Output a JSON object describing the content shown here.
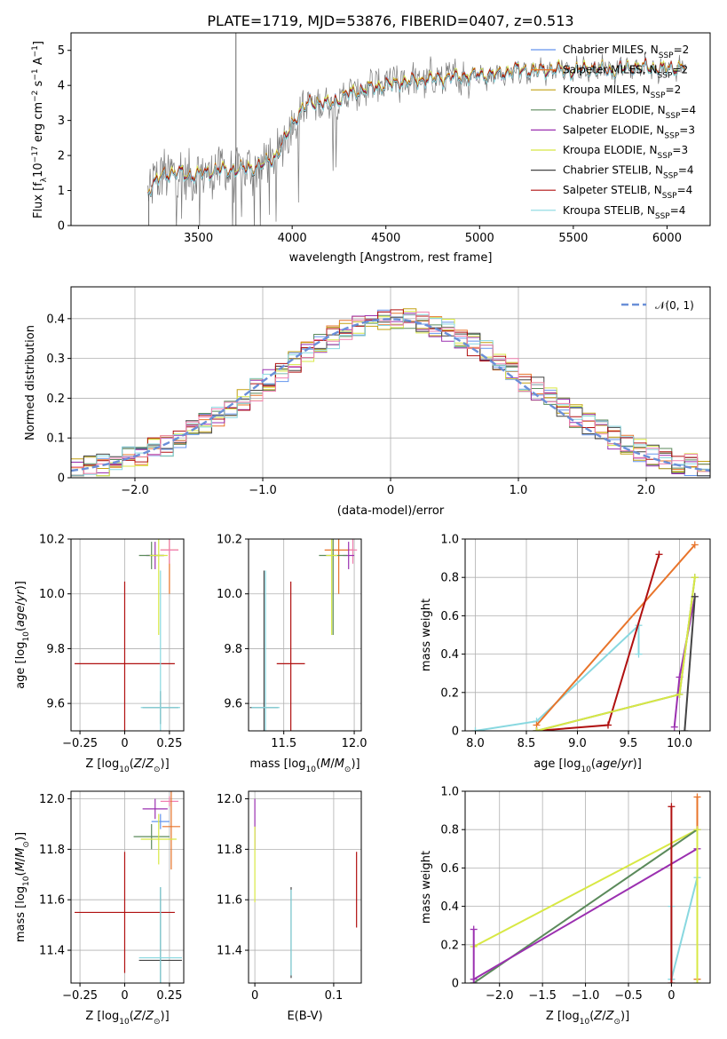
{
  "figure": {
    "title": "PLATE=1719, MJD=53876, FIBERID=0407, z=0.513"
  },
  "colors": {
    "chabrier_miles": "#6495ed",
    "salpeter_miles": "#e8742a",
    "kroupa_miles": "#c2a012",
    "chabrier_elodie": "#5b8a5b",
    "salpeter_elodie": "#9b30b0",
    "kroupa_elodie": "#d8e844",
    "chabrier_stelib": "#444444",
    "salpeter_stelib": "#b01010",
    "kroupa_stelib": "#88d8e0",
    "data_gray": "#7a7a7a",
    "normal_curve": "#6a8fd8",
    "pink": "#f080b0"
  },
  "chart_data": [
    {
      "id": "spectrum",
      "type": "line",
      "title": "PLATE=1719, MJD=53876, FIBERID=0407, z=0.513",
      "xlabel": "wavelength [Angstrom, rest frame]",
      "ylabel": "Flux [f_λ 10^-17 erg cm^-2 s^-1 A^-1]",
      "xlim": [
        2820,
        6230
      ],
      "ylim": [
        0,
        5.5
      ],
      "xticks": [
        3500,
        4000,
        4500,
        5000,
        5500,
        6000
      ],
      "yticks": [
        0,
        1,
        2,
        3,
        4,
        5
      ],
      "grid": false,
      "legend_position": "top-right",
      "legend": [
        {
          "label": "Chabrier MILES, N_SSP=2",
          "base": "Chabrier MILES, N",
          "sub": "SSP",
          "suffix": "=2",
          "color": "#6495ed"
        },
        {
          "label": "Salpeter MILES, N_SSP=2",
          "base": "Salpeter MILES, N",
          "sub": "SSP",
          "suffix": "=2",
          "color": "#e8742a"
        },
        {
          "label": "Kroupa MILES, N_SSP=2",
          "base": "Kroupa MILES, N",
          "sub": "SSP",
          "suffix": "=2",
          "color": "#c2a012"
        },
        {
          "label": "Chabrier ELODIE, N_SSP=4",
          "base": "Chabrier ELODIE, N",
          "sub": "SSP",
          "suffix": "=4",
          "color": "#5b8a5b"
        },
        {
          "label": "Salpeter ELODIE, N_SSP=3",
          "base": "Salpeter ELODIE, N",
          "sub": "SSP",
          "suffix": "=3",
          "color": "#9b30b0"
        },
        {
          "label": "Kroupa ELODIE, N_SSP=3",
          "base": "Kroupa ELODIE, N",
          "sub": "SSP",
          "suffix": "=3",
          "color": "#d8e844"
        },
        {
          "label": "Chabrier STELIB, N_SSP=4",
          "base": "Chabrier STELIB, N",
          "sub": "SSP",
          "suffix": "=4",
          "color": "#444444"
        },
        {
          "label": "Salpeter STELIB, N_SSP=4",
          "base": "Salpeter STELIB, N",
          "sub": "SSP",
          "suffix": "=4",
          "color": "#b01010"
        },
        {
          "label": "Kroupa STELIB, N_SSP=4",
          "base": "Kroupa STELIB, N",
          "sub": "SSP",
          "suffix": "=4",
          "color": "#88d8e0"
        }
      ],
      "model_x": [
        3230,
        3250,
        3300,
        3350,
        3400,
        3450,
        3500,
        3550,
        3600,
        3650,
        3700,
        3750,
        3800,
        3850,
        3900,
        3950,
        4000,
        4050,
        4100,
        4150,
        4200,
        4300,
        4400,
        4500,
        4600,
        4700,
        4800,
        4900,
        5000,
        5100,
        5200,
        5300,
        5400,
        5500,
        5600,
        5700,
        5800,
        5900,
        6000,
        6100
      ],
      "model_y": [
        1.0,
        1.1,
        1.4,
        1.5,
        1.5,
        1.4,
        1.45,
        1.5,
        1.6,
        1.55,
        1.6,
        1.6,
        1.65,
        1.75,
        1.9,
        2.3,
        2.9,
        3.3,
        3.5,
        3.5,
        3.45,
        3.75,
        3.9,
        4.0,
        4.1,
        4.15,
        4.2,
        4.25,
        4.3,
        4.3,
        4.45,
        4.4,
        4.45,
        4.4,
        4.5,
        4.4,
        4.5,
        4.5,
        4.45,
        4.55
      ]
    },
    {
      "id": "residuals",
      "type": "step",
      "xlabel": "(data-model)/error",
      "ylabel": "Normed distribution",
      "xlim": [
        -2.5,
        2.5
      ],
      "ylim": [
        0,
        0.48
      ],
      "xticks": [
        -2,
        -1,
        0,
        1,
        2
      ],
      "yticks": [
        0.0,
        0.1,
        0.2,
        0.3,
        0.4
      ],
      "grid": true,
      "legend_position": "top-right",
      "legend": [
        {
          "label": "𝒩(0, 1)",
          "style": "dashed",
          "color": "#6a8fd8"
        }
      ],
      "bin_width": 0.1
    },
    {
      "id": "age_vs_Z",
      "type": "errorbar",
      "xlabel": "Z [log10(Z/Z⊙)]",
      "ylabel": "age [log10(age/yr)]",
      "xlim": [
        -0.3,
        0.33
      ],
      "ylim": [
        9.5,
        10.2
      ],
      "xticks": [
        -0.25,
        0.0,
        0.25
      ],
      "yticks": [
        9.6,
        9.8,
        10.0,
        10.2
      ],
      "grid": true,
      "points": [
        {
          "x": 0.25,
          "y": 10.16,
          "xe": 0.05,
          "ye": 0.16,
          "color": "#e8742a"
        },
        {
          "x": 0.25,
          "y": 10.16,
          "xe": 0.05,
          "ye": 0.05,
          "color": "#f080b0"
        },
        {
          "x": 0.17,
          "y": 10.14,
          "xe": 0.05,
          "ye": 0.05,
          "color": "#9b30b0"
        },
        {
          "x": 0.15,
          "y": 10.14,
          "xe": 0.07,
          "ye": 0.05,
          "color": "#5b8a5b"
        },
        {
          "x": 0.19,
          "y": 10.14,
          "xe": 0.05,
          "ye": 0.29,
          "color": "#d8e844"
        },
        {
          "x": 0.0,
          "y": 9.745,
          "xe": 0.28,
          "ye": 0.3,
          "color": "#b01010"
        },
        {
          "x": 0.2,
          "y": 9.585,
          "xe": 0.1,
          "ye": 0.06,
          "color": "#444444"
        },
        {
          "x": 0.2,
          "y": 9.585,
          "xe": 0.11,
          "ye": 0.5,
          "color": "#88d8e0"
        }
      ]
    },
    {
      "id": "age_vs_mass",
      "type": "errorbar",
      "xlabel": "mass [log10(M/M⊙)]",
      "ylabel": "",
      "xlim": [
        11.25,
        12.05
      ],
      "ylim": [
        9.5,
        10.2
      ],
      "xticks": [
        11.5,
        12.0
      ],
      "yticks": [
        9.6,
        9.8,
        10.0,
        10.2
      ],
      "grid": true,
      "points": [
        {
          "x": 11.89,
          "y": 10.16,
          "xe": 0.1,
          "ye": 0.16,
          "color": "#e8742a"
        },
        {
          "x": 11.99,
          "y": 10.16,
          "xe": 0.03,
          "ye": 0.05,
          "color": "#f080b0"
        },
        {
          "x": 11.96,
          "y": 10.14,
          "xe": 0.04,
          "ye": 0.05,
          "color": "#9b30b0"
        },
        {
          "x": 11.85,
          "y": 10.14,
          "xe": 0.1,
          "ye": 0.29,
          "color": "#5b8a5b"
        },
        {
          "x": 11.84,
          "y": 10.14,
          "xe": 0.04,
          "ye": 0.29,
          "color": "#d8e844"
        },
        {
          "x": 11.55,
          "y": 9.745,
          "xe": 0.1,
          "ye": 0.3,
          "color": "#b01010"
        },
        {
          "x": 11.36,
          "y": 9.585,
          "xe": 0.1,
          "ye": 0.5,
          "color": "#444444"
        },
        {
          "x": 11.37,
          "y": 9.585,
          "xe": 0.1,
          "ye": 0.5,
          "color": "#88d8e0"
        }
      ]
    },
    {
      "id": "mass_weight_vs_age",
      "type": "line",
      "xlabel": "age [log10(age/yr)]",
      "ylabel": "mass weight",
      "xlim": [
        7.9,
        10.3
      ],
      "ylim": [
        0,
        1.0
      ],
      "xticks": [
        8.0,
        8.5,
        9.0,
        9.5,
        10.0
      ],
      "yticks": [
        0.0,
        0.2,
        0.4,
        0.6,
        0.8,
        1.0
      ],
      "grid": true,
      "series": [
        {
          "color": "#88d8e0",
          "x": [
            8.0,
            8.6,
            9.6,
            9.6
          ],
          "y": [
            0.0,
            0.05,
            0.55,
            0.4
          ]
        },
        {
          "color": "#e8742a",
          "x": [
            8.6,
            10.15
          ],
          "y": [
            0.03,
            0.97
          ]
        },
        {
          "color": "#b01010",
          "x": [
            8.6,
            9.3,
            9.8
          ],
          "y": [
            0.0,
            0.03,
            0.92
          ]
        },
        {
          "color": "#9b30b0",
          "x": [
            9.95,
            10.0,
            10.15
          ],
          "y": [
            0.02,
            0.28,
            0.7
          ]
        },
        {
          "color": "#5b8a5b",
          "x": [
            8.6,
            10.0,
            10.15
          ],
          "y": [
            0.0,
            0.19,
            0.8
          ]
        },
        {
          "color": "#d8e844",
          "x": [
            8.6,
            10.0,
            10.15
          ],
          "y": [
            0.0,
            0.19,
            0.8
          ]
        },
        {
          "color": "#444444",
          "x": [
            10.05,
            10.15
          ],
          "y": [
            0.0,
            0.7
          ]
        }
      ]
    },
    {
      "id": "mass_vs_Z",
      "type": "errorbar",
      "xlabel": "Z [log10(Z/Z⊙)]",
      "ylabel": "mass [log10(M/M⊙)]",
      "xlim": [
        -0.3,
        0.33
      ],
      "ylim": [
        11.27,
        12.03
      ],
      "xticks": [
        -0.25,
        0.0,
        0.25
      ],
      "yticks": [
        11.4,
        11.6,
        11.8,
        12.0
      ],
      "grid": true,
      "points": [
        {
          "x": 0.25,
          "y": 11.99,
          "xe": 0.05,
          "ye": 0.02,
          "color": "#f080b0"
        },
        {
          "x": 0.26,
          "y": 11.89,
          "xe": 0.05,
          "ye": 0.17,
          "color": "#e8742a"
        },
        {
          "x": 0.2,
          "y": 11.91,
          "xe": 0.05,
          "ye": 0.03,
          "color": "#6495ed"
        },
        {
          "x": 0.17,
          "y": 11.96,
          "xe": 0.07,
          "ye": 0.04,
          "color": "#9b30b0"
        },
        {
          "x": 0.15,
          "y": 11.85,
          "xe": 0.1,
          "ye": 0.05,
          "color": "#5b8a5b"
        },
        {
          "x": 0.19,
          "y": 11.84,
          "xe": 0.1,
          "ye": 0.1,
          "color": "#d8e844"
        },
        {
          "x": 0.0,
          "y": 11.55,
          "xe": 0.28,
          "ye": 0.24,
          "color": "#b01010"
        },
        {
          "x": 0.2,
          "y": 11.36,
          "xe": 0.12,
          "ye": 0.29,
          "color": "#444444"
        },
        {
          "x": 0.2,
          "y": 11.37,
          "xe": 0.12,
          "ye": 0.28,
          "color": "#88d8e0"
        }
      ]
    },
    {
      "id": "mass_vs_EBV",
      "type": "errorbar",
      "xlabel": "E(B-V)",
      "ylabel": "",
      "xlim": [
        -0.008,
        0.135
      ],
      "ylim": [
        11.27,
        12.03
      ],
      "xticks": [
        0.0,
        0.1
      ],
      "yticks": [
        11.4,
        11.6,
        11.8,
        12.0
      ],
      "grid": true,
      "points": [
        {
          "x": 0.0,
          "y": 11.9,
          "xe": 0.0,
          "ye": 0.1,
          "color": "#9b30b0"
        },
        {
          "x": 0.0,
          "y": 11.74,
          "xe": 0.0,
          "ye": 0.15,
          "color": "#d8e844"
        },
        {
          "x": 0.046,
          "y": 11.47,
          "xe": 0.0,
          "ye": 0.18,
          "color": "#444444"
        },
        {
          "x": 0.046,
          "y": 11.47,
          "xe": 0.0,
          "ye": 0.17,
          "color": "#88d8e0"
        },
        {
          "x": 0.129,
          "y": 11.64,
          "xe": 0.0,
          "ye": 0.15,
          "color": "#b01010"
        }
      ]
    },
    {
      "id": "mass_weight_vs_Z",
      "type": "line",
      "xlabel": "Z [log10(Z/Z⊙)]",
      "ylabel": "mass weight",
      "xlim": [
        -2.4,
        0.45
      ],
      "ylim": [
        0,
        1.0
      ],
      "xticks": [
        -2.0,
        -1.5,
        -1.0,
        -0.5,
        0.0
      ],
      "yticks": [
        0.0,
        0.2,
        0.4,
        0.6,
        0.8,
        1.0
      ],
      "grid": true,
      "series": [
        {
          "color": "#d8e844",
          "x": [
            -2.3,
            0.3
          ],
          "y": [
            0.19,
            0.8
          ]
        },
        {
          "color": "#5b8a5b",
          "x": [
            -2.3,
            0.3
          ],
          "y": [
            0.0,
            0.8
          ]
        },
        {
          "color": "#9b30b0",
          "x": [
            -2.3,
            0.3
          ],
          "y": [
            0.02,
            0.7
          ]
        },
        {
          "color": "#9b30b0",
          "x": [
            -2.3,
            -2.3
          ],
          "y": [
            0.0,
            0.28
          ]
        },
        {
          "color": "#88d8e0",
          "x": [
            0.0,
            0.3
          ],
          "y": [
            0.02,
            0.55
          ]
        },
        {
          "color": "#88d8e0",
          "x": [
            0.0,
            0.0
          ],
          "y": [
            0.02,
            0.4
          ]
        },
        {
          "color": "#b01010",
          "x": [
            0.0,
            0.0
          ],
          "y": [
            0.0,
            0.92
          ]
        },
        {
          "color": "#e8742a",
          "x": [
            0.3,
            0.3
          ],
          "y": [
            0.02,
            0.97
          ]
        },
        {
          "color": "#d8e844",
          "x": [
            0.3,
            0.3
          ],
          "y": [
            0.0,
            0.8
          ]
        }
      ]
    }
  ]
}
